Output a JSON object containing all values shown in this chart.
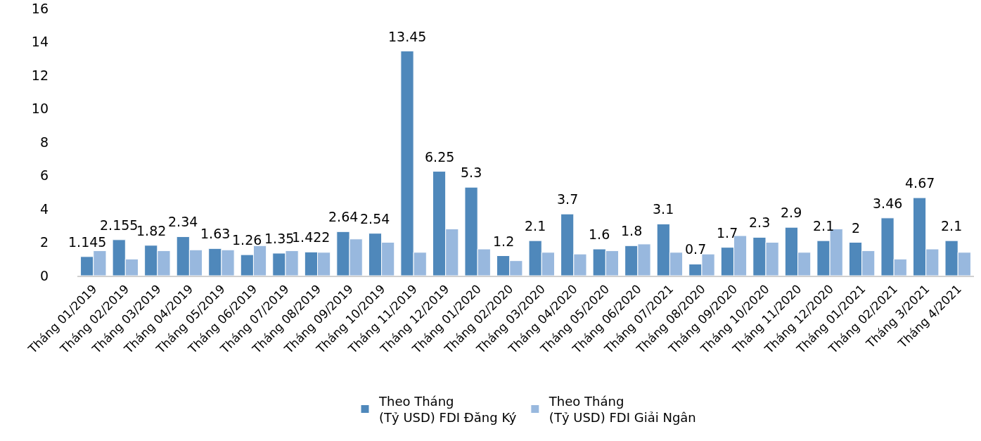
{
  "chart_data": {
    "type": "bar",
    "categories": [
      "Tháng 01/2019",
      "Tháng 02/2019",
      "Tháng 03/2019",
      "Tháng 04/2019",
      "Tháng 05/2019",
      "Tháng 06/2019",
      "Tháng 07/2019",
      "Tháng 08/2019",
      "Tháng 09/2019",
      "Tháng 10/2019",
      "Tháng 11/2019",
      "Tháng 12/2019",
      "Tháng 01/2020",
      "Tháng 02/2020",
      "Tháng 03/2020",
      "Tháng 04/2020",
      "Tháng 05/2020",
      "Tháng 06/2020",
      "Tháng 07/2021",
      "Tháng 08/2020",
      "Tháng 09/2020",
      "Tháng 10/2020",
      "Tháng 11/2020",
      "Tháng 12/2020",
      "Tháng 01/2021",
      "Tháng 02/2021",
      "Tháng 3/2021",
      "Tháng 4/2021"
    ],
    "series": [
      {
        "name": "Theo Tháng\n(Tỷ USD) FDI Đăng Ký",
        "color": "#4f88bb",
        "values": [
          1.145,
          2.155,
          1.82,
          2.34,
          1.63,
          1.26,
          1.35,
          1.422,
          2.64,
          2.54,
          13.45,
          6.25,
          5.3,
          1.2,
          2.1,
          3.7,
          1.6,
          1.8,
          3.1,
          0.7,
          1.7,
          2.3,
          2.9,
          2.1,
          2,
          3.46,
          4.67,
          2.1
        ],
        "value_labels": [
          "1.145",
          "2.155",
          "1.82",
          "2.34",
          "1.63",
          "1.26",
          "1.35",
          "1.422",
          "2.64",
          "2.54",
          "13.45",
          "6.25",
          "5.3",
          "1.2",
          "2.1",
          "3.7",
          "1.6",
          "1.8",
          "3.1",
          "0.7",
          "1.7",
          "2.3",
          "2.9",
          "2.1",
          "2",
          "3.46",
          "4.67",
          "2.1"
        ]
      },
      {
        "name": "Theo Tháng\n(Tỷ USD) FDI Giải Ngân",
        "color": "#98b8de",
        "values": [
          1.5,
          1.0,
          1.5,
          1.55,
          1.55,
          1.8,
          1.5,
          1.4,
          2.2,
          2.0,
          1.4,
          2.8,
          1.6,
          0.9,
          1.4,
          1.3,
          1.5,
          1.9,
          1.4,
          1.3,
          2.4,
          2.0,
          1.4,
          2.8,
          1.5,
          1.0,
          1.6,
          1.4
        ]
      }
    ],
    "ylim": [
      0,
      16
    ],
    "yticks": [
      0,
      2,
      4,
      6,
      8,
      10,
      12,
      14,
      16
    ],
    "grid": false,
    "legend": "bottom"
  }
}
